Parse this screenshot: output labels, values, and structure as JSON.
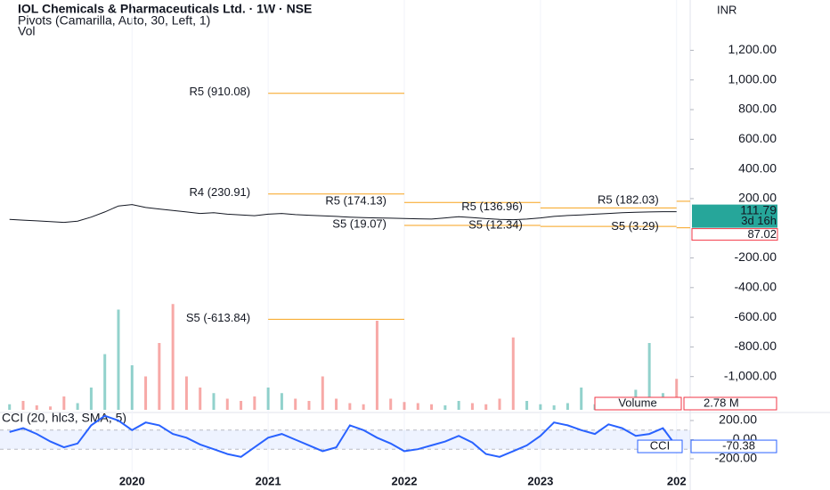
{
  "header": {
    "title": "IOL Chemicals & Pharmaceuticals Ltd. · 1W · NSE",
    "indicator": "Pivots (Camarilla, Auto, 30, Left, 1)",
    "volume_legend": "Vol"
  },
  "chart_data": [
    {
      "type": "line",
      "currency": "INR",
      "x": [
        2019.1,
        2019.2,
        2019.3,
        2019.4,
        2019.5,
        2019.6,
        2019.7,
        2019.8,
        2019.9,
        2020.0,
        2020.1,
        2020.2,
        2020.3,
        2020.4,
        2020.5,
        2020.6,
        2020.7,
        2020.8,
        2020.9,
        2021.0,
        2021.1,
        2021.2,
        2021.3,
        2021.4,
        2021.5,
        2021.6,
        2021.7,
        2021.8,
        2021.9,
        2022.0,
        2022.1,
        2022.2,
        2022.3,
        2022.4,
        2022.5,
        2022.6,
        2022.7,
        2022.8,
        2022.9,
        2023.0,
        2023.1,
        2023.2,
        2023.3,
        2023.4,
        2023.5,
        2023.6,
        2023.7,
        2023.8,
        2023.9,
        2024.0
      ],
      "values": [
        60,
        55,
        50,
        45,
        40,
        48,
        75,
        110,
        150,
        160,
        140,
        130,
        120,
        110,
        100,
        105,
        95,
        90,
        85,
        95,
        100,
        92,
        88,
        84,
        80,
        75,
        72,
        70,
        68,
        66,
        64,
        62,
        70,
        78,
        72,
        65,
        60,
        58,
        62,
        70,
        80,
        86,
        90,
        95,
        100,
        105,
        108,
        110,
        112,
        111.79
      ],
      "color": "#131722",
      "xlim": [
        2019.03,
        2024.1
      ],
      "ylim": [
        -1236,
        1539
      ],
      "xticks": [
        2020,
        2021,
        2022,
        2023,
        {
          "value": 2024,
          "label": "202"
        }
      ],
      "yticks": [
        {
          "value": 1200,
          "label": "1,200.00"
        },
        {
          "value": 1000,
          "label": "1,000.00"
        },
        {
          "value": 800,
          "label": "800.00"
        },
        {
          "value": 600,
          "label": "600.00"
        },
        {
          "value": 400,
          "label": "400.00"
        },
        {
          "value": 200,
          "label": "200.00"
        },
        {
          "value": -200,
          "label": "-200.00"
        },
        {
          "value": -400,
          "label": "-400.00"
        },
        {
          "value": -600,
          "label": "-600.00"
        },
        {
          "value": -800,
          "label": "-800.00"
        },
        {
          "value": -1000,
          "label": "-1,000.00"
        }
      ],
      "price_countdown": "3d 16h",
      "marker_value": 87.02,
      "pivot_color": "#f7a21b",
      "pivots": [
        {
          "start": 2021,
          "end": 2022,
          "levels": [
            {
              "label": "R5 (910.08)",
              "value": 910.08
            },
            {
              "label": "R4 (230.91)",
              "value": 230.91
            },
            {
              "label": "S5 (-613.84)",
              "value": -613.84
            }
          ]
        },
        {
          "start": 2022,
          "end": 2023,
          "levels": [
            {
              "label": "R5 (174.13)",
              "value": 174.13
            },
            {
              "label": "S5 (19.07)",
              "value": 19.07
            }
          ]
        },
        {
          "start": 2023,
          "end": 2024,
          "levels": [
            {
              "label": "R5 (136.96)",
              "value": 136.96
            },
            {
              "label": "S5 (12.34)",
              "value": 12.34
            }
          ]
        },
        {
          "start": 2024,
          "end": 2024.1,
          "levels": [
            {
              "label": "R5 (182.03)",
              "value": 182.03
            },
            {
              "label": "S5 (3.29)",
              "value": 3.29
            }
          ]
        }
      ],
      "volume": {
        "name": "Volume",
        "ylim": [
          0,
          12
        ],
        "up_color": "#26a69a",
        "down_color": "#ef5350",
        "values": [
          0.5,
          0.8,
          0.4,
          0.3,
          1.2,
          0.6,
          2,
          5,
          9,
          4,
          3,
          6,
          9.5,
          3,
          2,
          1.5,
          1,
          0.8,
          1.2,
          2,
          1.5,
          1,
          0.8,
          3,
          1,
          0.6,
          0.5,
          8,
          1,
          0.7,
          0.6,
          0.5,
          0.4,
          0.8,
          0.6,
          0.5,
          1,
          6.5,
          0.8,
          0.5,
          0.4,
          0.6,
          2,
          0.5,
          0.4,
          0.5,
          1.8,
          6,
          1.5,
          2.78
        ],
        "value_labels": {
          "49": "2.78 M"
        }
      }
    },
    {
      "type": "line",
      "title": "CCI (20, hlc3, SMA, 5)",
      "x": [
        2019.1,
        2019.2,
        2019.3,
        2019.4,
        2019.5,
        2019.6,
        2019.7,
        2019.8,
        2019.9,
        2020.0,
        2020.1,
        2020.2,
        2020.3,
        2020.4,
        2020.5,
        2020.6,
        2020.7,
        2020.8,
        2020.9,
        2021.0,
        2021.1,
        2021.2,
        2021.3,
        2021.4,
        2021.5,
        2021.6,
        2021.7,
        2021.8,
        2021.9,
        2022.0,
        2022.1,
        2022.2,
        2022.3,
        2022.4,
        2022.5,
        2022.6,
        2022.7,
        2022.8,
        2022.9,
        2023.0,
        2023.1,
        2023.2,
        2023.3,
        2023.4,
        2023.5,
        2023.6,
        2023.7,
        2023.8,
        2023.9,
        2024.0
      ],
      "series": [
        {
          "name": "CCI",
          "color": "#2962ff",
          "values": [
            80,
            120,
            60,
            -20,
            -80,
            -40,
            150,
            250,
            200,
            100,
            180,
            150,
            60,
            20,
            -50,
            -100,
            -150,
            -180,
            -80,
            20,
            60,
            0,
            -60,
            -120,
            -80,
            150,
            100,
            20,
            -40,
            -120,
            -100,
            -60,
            -20,
            40,
            -30,
            -150,
            -180,
            -120,
            -60,
            40,
            180,
            150,
            100,
            60,
            160,
            120,
            40,
            60,
            120,
            -70.38
          ]
        }
      ],
      "band": [
        -100,
        100
      ],
      "xlim": [
        2019.03,
        2024.1
      ],
      "ylim": [
        -340,
        284
      ],
      "yticks": [
        {
          "value": 200,
          "label": "200.00"
        },
        {
          "value": 0,
          "label": "0.00"
        },
        {
          "value": -200,
          "label": "-200.00"
        }
      ]
    }
  ]
}
